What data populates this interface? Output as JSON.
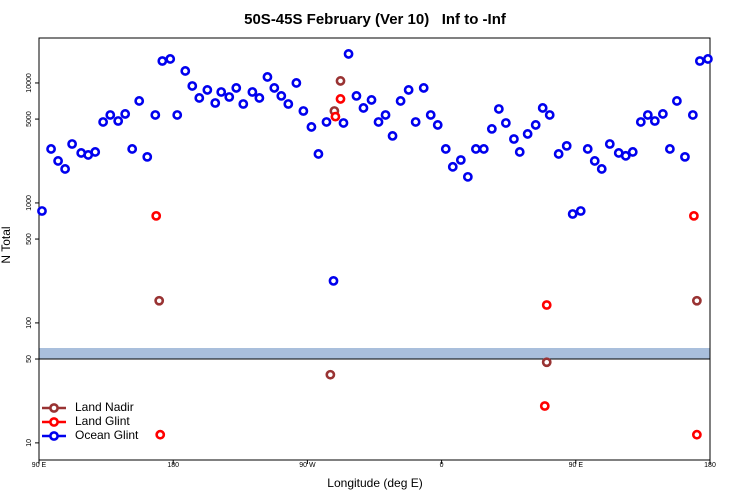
{
  "chart_data": {
    "type": "scatter",
    "title": "50S-45S February (Ver 10)   Inf to -Inf",
    "x_label": "Longitude (deg E)",
    "y_label": "N Total",
    "y_log": true,
    "legend": "bottom-left",
    "xlim": [
      90,
      540
    ],
    "xticks": [
      {
        "value": 90,
        "label": "90 E"
      },
      180,
      {
        "value": 270,
        "label": "90 W"
      },
      {
        "value": 360,
        "label": "0"
      },
      {
        "value": 450,
        "label": "90 E"
      },
      {
        "value": 540,
        "label": "180"
      }
    ],
    "ylim": [
      7.2,
      23700
    ],
    "yticks": [
      10,
      50,
      100,
      500,
      1000,
      5000,
      10000
    ],
    "series": [
      {
        "name": "Land Nadir",
        "color": "#993333",
        "x": [
          170.6,
          288.1,
          292.2,
          285.4,
          430.5,
          531.2
        ],
        "values": [
          153,
          5840,
          10400,
          37,
          47,
          153
        ]
      },
      {
        "name": "Land Glint",
        "color": "#ff0000",
        "x": [
          168.6,
          171.3,
          288.8,
          292.2,
          430.5,
          429.2,
          529.2,
          531.2
        ],
        "values": [
          780,
          11.7,
          5240,
          7360,
          141,
          20.3,
          780,
          11.7
        ]
      },
      {
        "name": "Ocean Glint",
        "color": "#0000ee",
        "x": [
          92.0,
          98.1,
          102.8,
          107.5,
          112.2,
          118.3,
          123.0,
          127.7,
          133.0,
          137.8,
          143.1,
          147.8,
          152.5,
          157.2,
          162.6,
          168.0,
          172.7,
          178.0,
          182.7,
          188.1,
          192.8,
          197.5,
          202.9,
          208.2,
          212.2,
          217.6,
          222.3,
          227.0,
          233.1,
          237.8,
          243.2,
          247.8,
          252.5,
          257.2,
          262.6,
          267.3,
          272.7,
          277.4,
          282.8,
          287.5,
          294.2,
          297.6,
          302.9,
          307.6,
          313.0,
          317.7,
          322.4,
          327.1,
          332.5,
          337.9,
          342.6,
          348.0,
          352.7,
          357.4,
          362.8,
          367.5,
          372.9,
          377.6,
          383.0,
          388.3,
          393.7,
          398.4,
          403.1,
          408.5,
          412.4,
          417.7,
          423.1,
          427.8,
          432.5,
          438.5,
          443.9,
          447.9,
          453.3,
          458.0,
          462.7,
          467.4,
          472.8,
          478.8,
          483.5,
          488.2,
          493.6,
          498.3,
          503.0,
          508.4,
          513.1,
          517.8,
          523.2,
          528.5,
          533.2,
          538.6
        ],
        "values": [
          857,
          2818,
          2239,
          1920,
          3100,
          2610,
          2512,
          2660,
          4730,
          5410,
          4820,
          5520,
          2818,
          7080,
          2420,
          5410,
          15240,
          15850,
          5410,
          12590,
          9440,
          7500,
          8750,
          6810,
          8410,
          7640,
          9090,
          6680,
          8410,
          7500,
          11220,
          9090,
          7800,
          6680,
          10000,
          5840,
          4300,
          2560,
          4730,
          224,
          4640,
          17460,
          7800,
          6190,
          7220,
          4730,
          5410,
          3620,
          7080,
          8750,
          4730,
          9090,
          5410,
          4470,
          2818,
          2000,
          2280,
          1650,
          2818,
          2818,
          4140,
          6070,
          4640,
          3410,
          2660,
          3760,
          4470,
          6190,
          5410,
          2560,
          2990,
          809,
          857,
          2818,
          2239,
          1920,
          3100,
          2610,
          2470,
          2660,
          4730,
          5410,
          4820,
          5520,
          2818,
          7080,
          2420,
          5410,
          15240,
          15850
        ]
      }
    ]
  }
}
